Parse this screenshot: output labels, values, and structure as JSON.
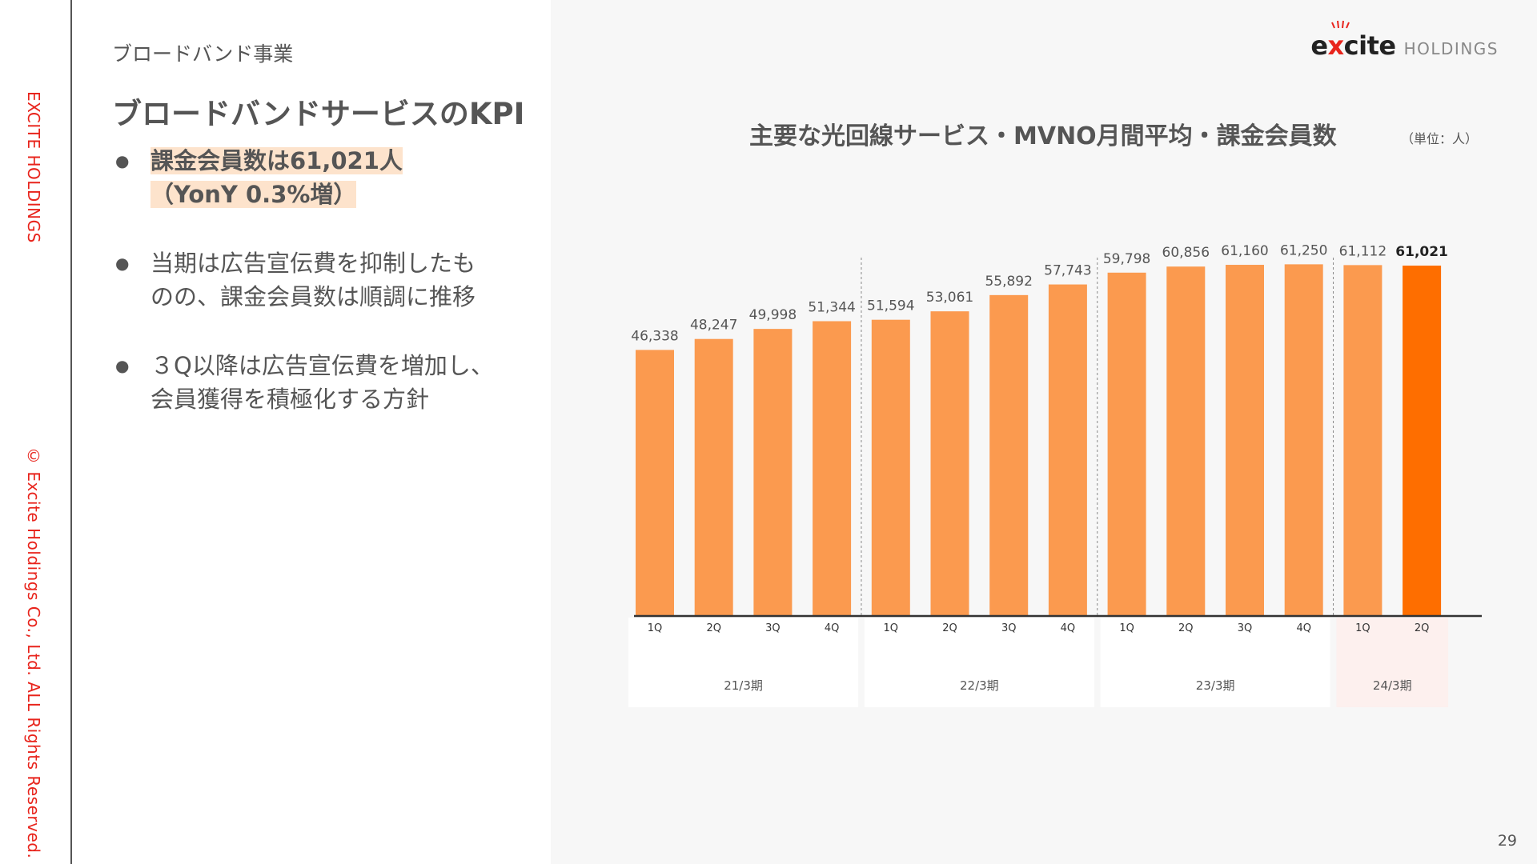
{
  "sidebar": {
    "company": "EXCITE HOLDINGS",
    "copyright": "© Excite Holdings Co., Ltd. ALL Rights Reserved."
  },
  "header": {
    "section": "ブロードバンド事業",
    "title": "ブロードバンドサービスのKPI"
  },
  "bullets": [
    {
      "line1": "課金会員数は61,021人",
      "line2": "（YonY 0.3%増）",
      "highlight": true
    },
    {
      "line1": "当期は広告宣伝費を抑制したも",
      "line2": "のの、課金会員数は順調に推移",
      "highlight": false
    },
    {
      "line1": "３Q以降は広告宣伝費を増加し、",
      "line2": "会員獲得を積極化する方針",
      "highlight": false
    }
  ],
  "logo": {
    "word_pre": "e",
    "word_x": "x",
    "word_post": "cite",
    "suffix": "HOLDINGS"
  },
  "page_number": "29",
  "colors": {
    "accent": "#e8241c",
    "bar": "#fb9a4f",
    "bar_highlight": "#fe6e00",
    "highlight_bg": "#fde3cc",
    "period_box": "#ffffff",
    "period_box_highlight": "#fdf0ee"
  },
  "chart_data": {
    "type": "bar",
    "title": "主要な光回線サービス・MVNO月間平均・課金会員数",
    "unit": "（単位：人）",
    "categories": [
      "1Q",
      "2Q",
      "3Q",
      "4Q",
      "1Q",
      "2Q",
      "3Q",
      "4Q",
      "1Q",
      "2Q",
      "3Q",
      "4Q",
      "1Q",
      "2Q"
    ],
    "values": [
      46338,
      48247,
      49998,
      51344,
      51594,
      53061,
      55892,
      57743,
      59798,
      60856,
      61160,
      61250,
      61112,
      61021
    ],
    "labels": [
      "46,338",
      "48,247",
      "49,998",
      "51,344",
      "51,594",
      "53,061",
      "55,892",
      "57,743",
      "59,798",
      "60,856",
      "61,160",
      "61,250",
      "61,112",
      "61,021"
    ],
    "highlight_index": 13,
    "groups": [
      {
        "label": "21/3期",
        "count": 4
      },
      {
        "label": "22/3期",
        "count": 4
      },
      {
        "label": "23/3期",
        "count": 4
      },
      {
        "label": "24/3期",
        "count": 2,
        "highlight": true
      }
    ],
    "ylim": [
      0,
      62000
    ],
    "grid": false,
    "legend": "none"
  }
}
